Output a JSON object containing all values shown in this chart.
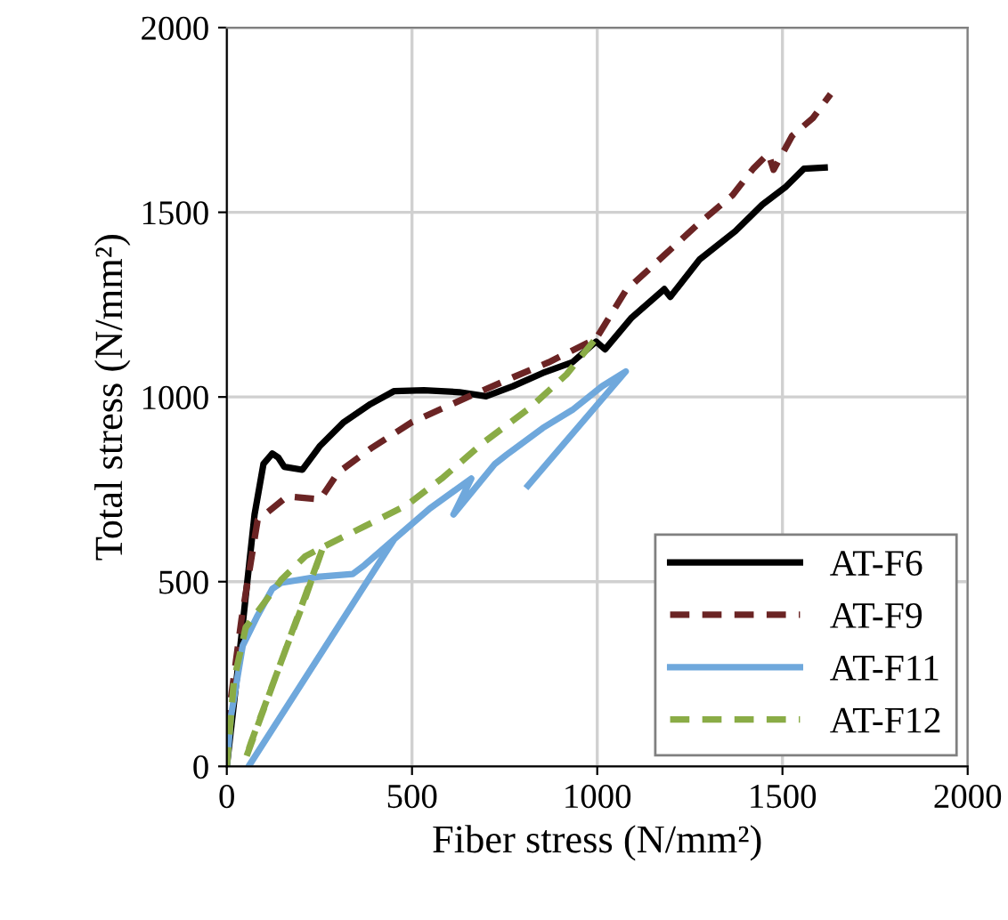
{
  "chart_data": {
    "type": "line",
    "xlabel": "Fiber stress (N/mm²)",
    "ylabel": "Total stress (N/mm²)",
    "xlim": [
      0,
      2000
    ],
    "ylim": [
      0,
      2000
    ],
    "xticks": [
      0,
      500,
      1000,
      1500,
      2000
    ],
    "yticks": [
      0,
      500,
      1000,
      1500,
      2000
    ],
    "grid": true,
    "legend": "bottom right",
    "marker": "none",
    "series": [
      {
        "name": "AT-F6",
        "color": "#000000",
        "line_style": "solid",
        "x": [
          0,
          35,
          75,
          99,
          123,
          139,
          155,
          204,
          252,
          316,
          388,
          452,
          532,
          628,
          700,
          772,
          853,
          933,
          997,
          1021,
          1093,
          1181,
          1197,
          1277,
          1373,
          1446,
          1510,
          1558,
          1614
        ],
        "values": [
          0,
          311,
          682,
          819,
          847,
          836,
          811,
          803,
          868,
          932,
          981,
          1016,
          1018,
          1013,
          1002,
          1029,
          1065,
          1094,
          1150,
          1129,
          1215,
          1292,
          1271,
          1373,
          1449,
          1521,
          1570,
          1618,
          1621
        ]
      },
      {
        "name": "AT-F9",
        "color": "#6b2424",
        "line_style": "dashed",
        "x": [
          0,
          40,
          83,
          163,
          252,
          300,
          388,
          500,
          644,
          772,
          869,
          997,
          1077,
          1181,
          1269,
          1365,
          1421,
          1462,
          1476,
          1526,
          1582,
          1630
        ],
        "values": [
          100,
          400,
          666,
          731,
          723,
          795,
          860,
          932,
          997,
          1053,
          1094,
          1158,
          1288,
          1384,
          1465,
          1546,
          1618,
          1659,
          1615,
          1707,
          1755,
          1820
        ]
      },
      {
        "name": "AT-F11",
        "color": "#6fa8dc",
        "line_style": "solid",
        "x": [
          0,
          11,
          43,
          83,
          123,
          147,
          244,
          340,
          372,
          452,
          59,
          452,
          548,
          660,
          612,
          724,
          756,
          853,
          933,
          1013,
          1077,
          813
        ],
        "values": [
          0,
          134,
          327,
          408,
          481,
          497,
          513,
          521,
          545,
          615,
          0,
          615,
          698,
          779,
          682,
          819,
          844,
          916,
          965,
          1029,
          1069,
          760
        ]
      },
      {
        "name": "AT-F12",
        "color": "#8aac46",
        "line_style": "dashed",
        "x": [
          0,
          19,
          51,
          99,
          147,
          212,
          260,
          212,
          163,
          115,
          67,
          51,
          260,
          372,
          484,
          580,
          692,
          821,
          917,
          996
        ],
        "values": [
          0,
          231,
          376,
          440,
          505,
          569,
          594,
          456,
          327,
          198,
          69,
          21,
          594,
          650,
          706,
          779,
          876,
          973,
          1061,
          1158
        ]
      }
    ]
  }
}
